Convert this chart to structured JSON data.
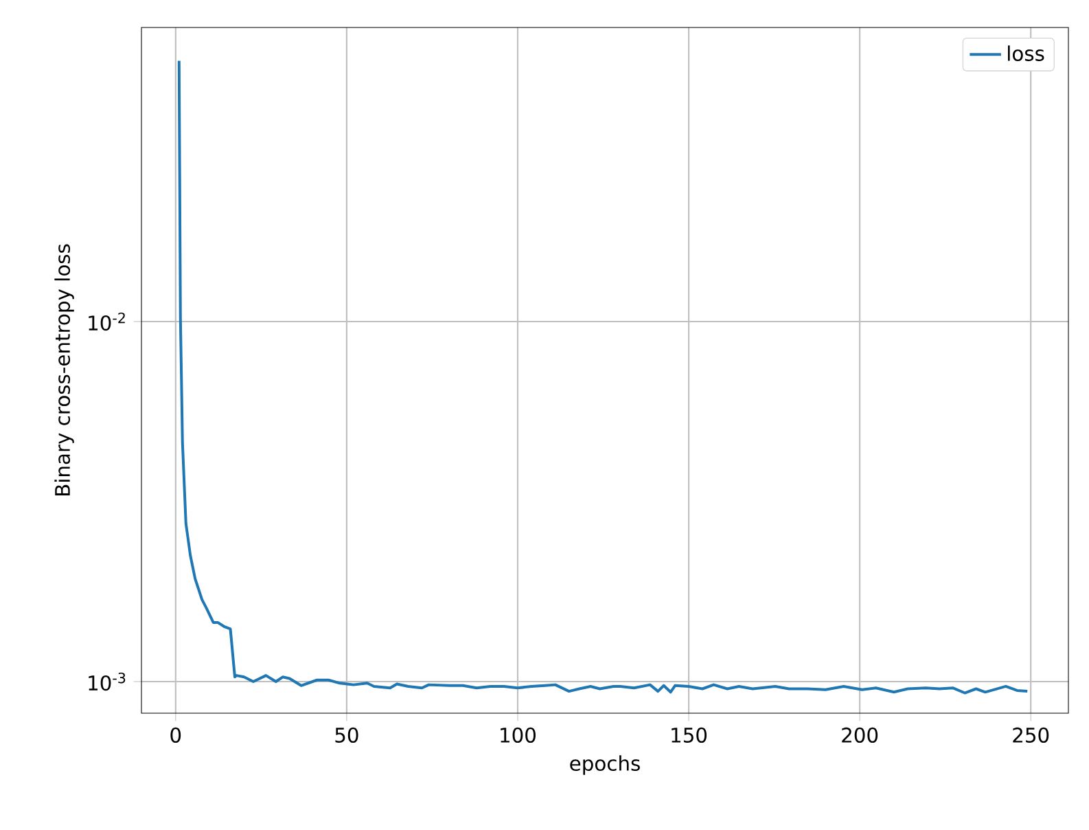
{
  "chart_data": {
    "type": "line",
    "xlabel": "epochs",
    "ylabel": "Binary cross-entropy loss",
    "x": [
      1,
      1.4,
      2,
      3,
      4.3,
      5.7,
      7.7,
      9,
      11,
      12.3,
      14.3,
      16,
      17.3,
      17.8,
      20,
      22.7,
      26.4,
      29.3,
      31.3,
      33.3,
      36.7,
      41.3,
      44.7,
      48,
      52,
      56,
      58,
      62.7,
      64.7,
      68,
      72,
      74,
      80,
      84,
      88,
      92,
      96,
      100,
      104,
      108,
      111,
      115,
      118,
      121.3,
      124,
      128,
      130,
      134,
      138.7,
      141,
      142.7,
      144.7,
      146,
      150,
      154,
      157.3,
      161.3,
      164.7,
      168.7,
      175.3,
      179.3,
      184.7,
      190,
      195.3,
      200.7,
      204.7,
      210,
      214,
      219.3,
      223.3,
      227.3,
      230.7,
      234,
      236.7,
      242.7,
      246,
      249
    ],
    "series": [
      {
        "name": "loss",
        "color": "#1f77b4",
        "values": [
          0.053,
          0.0102,
          0.0046,
          0.00275,
          0.00224,
          0.00193,
          0.00169,
          0.0016,
          0.00146,
          0.00146,
          0.00142,
          0.0014,
          0.00103,
          0.00104,
          0.00103,
          0.001,
          0.00104,
          0.001,
          0.00103,
          0.00102,
          0.000975,
          0.00101,
          0.00101,
          0.00099,
          0.00098,
          0.00099,
          0.00097,
          0.00096,
          0.000985,
          0.00097,
          0.00096,
          0.00098,
          0.000975,
          0.000975,
          0.00096,
          0.00097,
          0.00097,
          0.00096,
          0.00097,
          0.000975,
          0.00098,
          0.00094,
          0.000955,
          0.00097,
          0.000955,
          0.00097,
          0.00097,
          0.00096,
          0.00098,
          0.00094,
          0.000975,
          0.000935,
          0.000975,
          0.00097,
          0.000955,
          0.00098,
          0.000955,
          0.00097,
          0.000955,
          0.00097,
          0.000955,
          0.000955,
          0.00095,
          0.00097,
          0.00095,
          0.00096,
          0.000935,
          0.000955,
          0.00096,
          0.000955,
          0.00096,
          0.00093,
          0.000955,
          0.000935,
          0.00097,
          0.000945,
          0.00094
        ]
      }
    ],
    "xlim": [
      -10,
      261
    ],
    "ylim": [
      0.000817,
      0.0656
    ],
    "log": "y",
    "xticks": [
      0,
      50,
      100,
      150,
      200,
      250
    ],
    "yticks": [
      {
        "value": 0.001,
        "label": "10$^{-3}$"
      },
      {
        "value": 0.01,
        "label": "10$^{-2}$"
      }
    ],
    "grid": true,
    "legend": "top right"
  }
}
